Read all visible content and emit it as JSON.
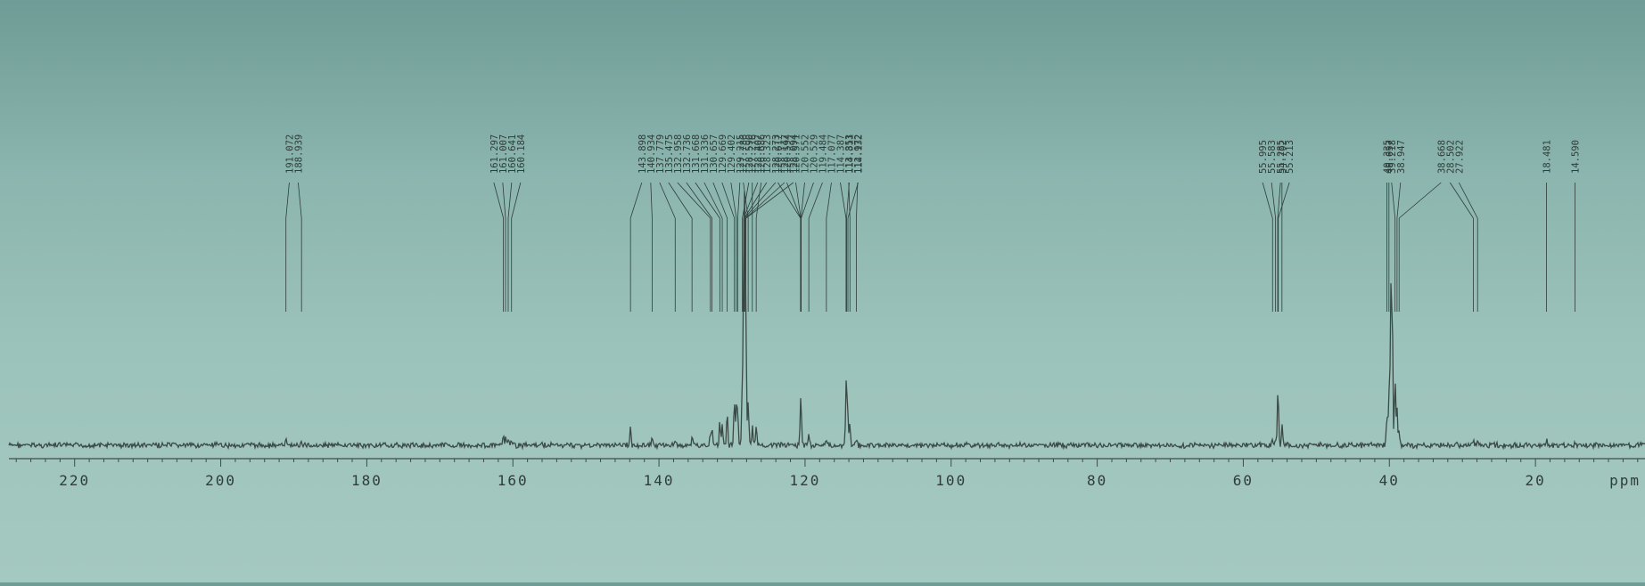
{
  "chart_data": {
    "type": "line",
    "title": "",
    "xlabel": "",
    "ylabel": "",
    "x_unit_label": "ppm",
    "xlim": [
      229,
      5
    ],
    "x_reversed": true,
    "grid": false,
    "x_ticks": [
      220,
      200,
      180,
      160,
      140,
      120,
      100,
      80,
      60,
      40,
      20
    ],
    "colors": {
      "trace": "#3c4a46",
      "label": "#2f3c39",
      "axis": "#3f4d49"
    },
    "peaks": [
      {
        "ppm": 191.072,
        "height": 0.03
      },
      {
        "ppm": 188.939,
        "height": 0.025
      },
      {
        "ppm": 161.297,
        "height": 0.045
      },
      {
        "ppm": 161.007,
        "height": 0.05
      },
      {
        "ppm": 160.641,
        "height": 0.04
      },
      {
        "ppm": 160.184,
        "height": 0.035
      },
      {
        "ppm": 143.898,
        "height": 0.14
      },
      {
        "ppm": 140.934,
        "height": 0.06
      },
      {
        "ppm": 137.779,
        "height": 0.04
      },
      {
        "ppm": 135.475,
        "height": 0.06
      },
      {
        "ppm": 132.958,
        "height": 0.07
      },
      {
        "ppm": 132.736,
        "height": 0.1
      },
      {
        "ppm": 131.668,
        "height": 0.16
      },
      {
        "ppm": 131.336,
        "height": 0.15
      },
      {
        "ppm": 130.657,
        "height": 0.24
      },
      {
        "ppm": 129.669,
        "height": 0.3
      },
      {
        "ppm": 129.402,
        "height": 0.24
      },
      {
        "ppm": 129.215,
        "height": 0.2
      },
      {
        "ppm": 128.59,
        "height": 0.4
      },
      {
        "ppm": 128.407,
        "height": 0.58
      },
      {
        "ppm": 128.323,
        "height": 0.72
      },
      {
        "ppm": 128.273,
        "height": 0.65
      },
      {
        "ppm": 128.147,
        "height": 0.5
      },
      {
        "ppm": 128.094,
        "height": 0.45
      },
      {
        "ppm": 127.786,
        "height": 0.3
      },
      {
        "ppm": 127.216,
        "height": 0.12
      },
      {
        "ppm": 126.686,
        "height": 0.12
      },
      {
        "ppm": 120.617,
        "height": 0.08
      },
      {
        "ppm": 120.594,
        "height": 0.09
      },
      {
        "ppm": 120.571,
        "height": 0.07
      },
      {
        "ppm": 120.552,
        "height": 0.06
      },
      {
        "ppm": 120.529,
        "height": 0.05
      },
      {
        "ppm": 119.484,
        "height": 0.08
      },
      {
        "ppm": 117.077,
        "height": 0.05
      },
      {
        "ppm": 114.387,
        "height": 0.25
      },
      {
        "ppm": 114.311,
        "height": 0.22
      },
      {
        "ppm": 114.132,
        "height": 0.2
      },
      {
        "ppm": 113.853,
        "height": 0.14
      },
      {
        "ppm": 112.972,
        "height": 0.03
      },
      {
        "ppm": 55.995,
        "height": 0.04
      },
      {
        "ppm": 55.583,
        "height": 0.04
      },
      {
        "ppm": 55.285,
        "height": 0.2
      },
      {
        "ppm": 55.213,
        "height": 0.18
      },
      {
        "ppm": 54.702,
        "height": 0.14
      },
      {
        "ppm": 40.335,
        "height": 0.2
      },
      {
        "ppm": 40.057,
        "height": 0.35
      },
      {
        "ppm": 39.8,
        "height": 1.0
      },
      {
        "ppm": 39.6,
        "height": 0.85
      },
      {
        "ppm": 39.218,
        "height": 0.45
      },
      {
        "ppm": 38.947,
        "height": 0.25
      },
      {
        "ppm": 38.668,
        "height": 0.1
      },
      {
        "ppm": 28.502,
        "height": 0.03
      },
      {
        "ppm": 27.922,
        "height": 0.03
      },
      {
        "ppm": 18.481,
        "height": 0.04
      },
      {
        "ppm": 14.59,
        "height": 0.03
      }
    ],
    "label_groups": [
      {
        "labels": [
          "191.072",
          "188.939"
        ],
        "peaks": [
          191.072,
          188.939
        ]
      },
      {
        "labels": [
          "161.297",
          "161.007",
          "160.641",
          "160.184"
        ],
        "peaks": [
          161.297,
          161.007,
          160.641,
          160.184
        ]
      },
      {
        "labels": [
          "143.898",
          "140.934",
          "137.779",
          "135.475",
          "132.958",
          "132.736",
          "131.668",
          "131.336",
          "130.657",
          "129.669",
          "129.402",
          "129.215",
          "128.590",
          "128.407",
          "128.323",
          "128.273",
          "128.147",
          "128.094"
        ],
        "peaks": [
          143.898,
          140.934,
          137.779,
          135.475,
          132.958,
          132.736,
          131.668,
          131.336,
          130.657,
          129.669,
          129.402,
          129.215,
          128.59,
          128.407,
          128.323,
          128.273,
          128.147,
          128.094
        ]
      },
      {
        "labels": [
          "127.786",
          "127.216",
          "126.686"
        ],
        "peaks": [
          127.786,
          127.216,
          126.686
        ]
      },
      {
        "labels": [
          "120.617",
          "120.594",
          "120.571",
          "120.552",
          "120.529",
          "119.484",
          "117.077",
          "114.387",
          "114.311",
          "114.132"
        ],
        "peaks": [
          120.617,
          120.594,
          120.571,
          120.552,
          120.529,
          119.484,
          117.077,
          114.387,
          114.311,
          114.132
        ]
      },
      {
        "labels": [
          "113.853",
          "112.972"
        ],
        "peaks": [
          113.853,
          112.972
        ]
      },
      {
        "labels": [
          "55.995",
          "55.583",
          "55.285",
          "55.213"
        ],
        "peaks": [
          55.995,
          55.583,
          55.285,
          55.213
        ]
      },
      {
        "labels": [
          "54.702"
        ],
        "peaks": [
          54.702
        ]
      },
      {
        "labels": [
          "40.335"
        ],
        "peaks": [
          40.335
        ]
      },
      {
        "labels": [
          "40.057"
        ],
        "peaks": [
          40.057
        ]
      },
      {
        "labels": [
          "39.218",
          "38.947"
        ],
        "peaks": [
          39.218,
          38.947
        ]
      },
      {
        "labels": [
          "38.668",
          "28.502",
          "27.922"
        ],
        "peaks": [
          38.668,
          28.502,
          27.922
        ]
      },
      {
        "labels": [
          "18.481"
        ],
        "peaks": [
          18.481
        ]
      },
      {
        "labels": [
          "14.590"
        ],
        "peaks": [
          14.59
        ]
      }
    ]
  }
}
